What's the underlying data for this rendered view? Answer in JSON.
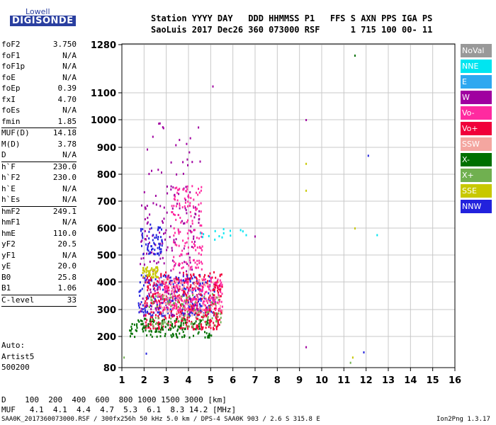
{
  "logo": {
    "line1": "Lowell",
    "line2": "DIGISONDE"
  },
  "header": {
    "line1": "Station YYYY DAY   DDD HHMMSS P1   FFS S AXN PPS IGA PS",
    "line2": "SaoLuis 2017 Dec26 360 073000 RSF      1 715 100 00- 11"
  },
  "parameter_groups": [
    [
      {
        "label": "foF2",
        "value": "3.750"
      },
      {
        "label": "foF1",
        "value": "N/A"
      },
      {
        "label": "foF1p",
        "value": "N/A"
      },
      {
        "label": "foE",
        "value": "N/A"
      },
      {
        "label": "foEp",
        "value": "0.39"
      },
      {
        "label": "fxI",
        "value": "4.70"
      },
      {
        "label": "foEs",
        "value": "N/A"
      },
      {
        "label": "fmin",
        "value": "1.85"
      }
    ],
    [
      {
        "label": "MUF(D)",
        "value": "14.18"
      },
      {
        "label": "M(D)",
        "value": "3.78"
      },
      {
        "label": "D",
        "value": "N/A"
      }
    ],
    [
      {
        "label": "h`F",
        "value": "230.0"
      },
      {
        "label": "h`F2",
        "value": "230.0"
      },
      {
        "label": "h`E",
        "value": "N/A"
      },
      {
        "label": "h`Es",
        "value": "N/A"
      }
    ],
    [
      {
        "label": "hmF2",
        "value": "249.1"
      },
      {
        "label": "hmF1",
        "value": "N/A"
      },
      {
        "label": "hmE",
        "value": "110.0"
      },
      {
        "label": "yF2",
        "value": "20.5"
      },
      {
        "label": "yF1",
        "value": "N/A"
      },
      {
        "label": "yE",
        "value": "20.0"
      },
      {
        "label": "B0",
        "value": "25.8"
      },
      {
        "label": "B1",
        "value": "1.06"
      }
    ],
    [
      {
        "label": "C-level",
        "value": "33"
      }
    ]
  ],
  "autoscaling": {
    "line1": "Auto:",
    "line2": "Artist5",
    "line3": "500200"
  },
  "bottom": {
    "d_row": "D    100  200  400  600  800 1000 1500 3000 [km]",
    "muf_row": "MUF   4.1  4.1  4.4  4.7  5.3  6.1  8.3 14.2 [MHz]",
    "footer_left": "SAA0K_2017360073000.RSF / 300fx256h 50 kHz 5.0 km / DPS-4 SAA0K 903 / 2.6 S 315.8 E",
    "footer_right": "Ion2Png 1.3.17"
  },
  "legend": [
    {
      "label": "NoVal",
      "color": "#999999"
    },
    {
      "label": "NNE",
      "color": "#00e5f0"
    },
    {
      "label": "E",
      "color": "#2ea8f0"
    },
    {
      "label": "W",
      "color": "#a000a0"
    },
    {
      "label": "Vo-",
      "color": "#ff2aa0"
    },
    {
      "label": "Vo+",
      "color": "#f0003a"
    },
    {
      "label": "SSW",
      "color": "#f4a6a0"
    },
    {
      "label": "X-",
      "color": "#007000"
    },
    {
      "label": "X+",
      "color": "#70b050"
    },
    {
      "label": "SSE",
      "color": "#c8c800"
    },
    {
      "label": "NNW",
      "color": "#2222dd"
    }
  ],
  "chart_data": {
    "type": "scatter",
    "xlabel": "",
    "ylabel": "",
    "xlim": [
      1,
      16
    ],
    "ylim": [
      80,
      1280
    ],
    "x_ticks": [
      "1",
      "2",
      "3",
      "4",
      "5",
      "6",
      "7",
      "8",
      "9",
      "10",
      "11",
      "12",
      "13",
      "14",
      "15",
      "16"
    ],
    "y_ticks": [
      "80",
      "200",
      "300",
      "400",
      "500",
      "600",
      "700",
      "800",
      "900",
      "1000",
      "1100",
      "1280"
    ],
    "y_scale": "nonlinear (height axis as printed)",
    "grid": true,
    "legend_position": "right",
    "regions": [
      {
        "label": "NNW",
        "x": [
          1.7,
          5.2
        ],
        "y": [
          280,
          430
        ],
        "n": 260
      },
      {
        "label": "Vo+",
        "x": [
          2.0,
          5.5
        ],
        "y": [
          230,
          440
        ],
        "n": 420
      },
      {
        "label": "Vo-",
        "x": [
          2.5,
          5.5
        ],
        "y": [
          300,
          420
        ],
        "n": 220
      },
      {
        "label": "W",
        "x": [
          1.8,
          4.5
        ],
        "y": [
          280,
          760
        ],
        "n": 180
      },
      {
        "label": "Vo-",
        "x": [
          3.2,
          4.6
        ],
        "y": [
          450,
          760
        ],
        "n": 140
      },
      {
        "label": "NNW",
        "x": [
          1.8,
          2.8
        ],
        "y": [
          500,
          620
        ],
        "n": 60
      },
      {
        "label": "SSE",
        "x": [
          1.9,
          2.6
        ],
        "y": [
          420,
          460
        ],
        "n": 50
      },
      {
        "label": "X-",
        "x": [
          1.3,
          5.0
        ],
        "y": [
          200,
          270
        ],
        "n": 140
      },
      {
        "label": "X+",
        "x": [
          2.2,
          5.5
        ],
        "y": [
          240,
          360
        ],
        "n": 90
      },
      {
        "label": "SSW",
        "x": [
          2.5,
          5.5
        ],
        "y": [
          280,
          420
        ],
        "n": 80
      },
      {
        "label": "NNE",
        "x": [
          4.5,
          6.5
        ],
        "y": [
          560,
          600
        ],
        "n": 14
      },
      {
        "label": "W",
        "x": [
          1.9,
          4.6
        ],
        "y": [
          800,
          1010
        ],
        "n": 24
      }
    ],
    "points": [
      {
        "x": 11.5,
        "y": 1240,
        "label": "X-"
      },
      {
        "x": 5.1,
        "y": 1125,
        "label": "W"
      },
      {
        "x": 9.3,
        "y": 1000,
        "label": "W"
      },
      {
        "x": 12.1,
        "y": 870,
        "label": "NNW"
      },
      {
        "x": 9.3,
        "y": 840,
        "label": "SSE"
      },
      {
        "x": 9.3,
        "y": 740,
        "label": "SSE"
      },
      {
        "x": 11.5,
        "y": 600,
        "label": "SSE"
      },
      {
        "x": 12.5,
        "y": 575,
        "label": "NNE"
      },
      {
        "x": 6.6,
        "y": 575,
        "label": "NNE"
      },
      {
        "x": 7.0,
        "y": 570,
        "label": "W"
      },
      {
        "x": 9.3,
        "y": 160,
        "label": "W"
      },
      {
        "x": 11.9,
        "y": 140,
        "label": "NNW"
      },
      {
        "x": 11.4,
        "y": 120,
        "label": "SSE"
      },
      {
        "x": 11.3,
        "y": 100,
        "label": "X+"
      },
      {
        "x": 2.1,
        "y": 135,
        "label": "NNW"
      },
      {
        "x": 1.1,
        "y": 120,
        "label": "X+"
      }
    ]
  }
}
